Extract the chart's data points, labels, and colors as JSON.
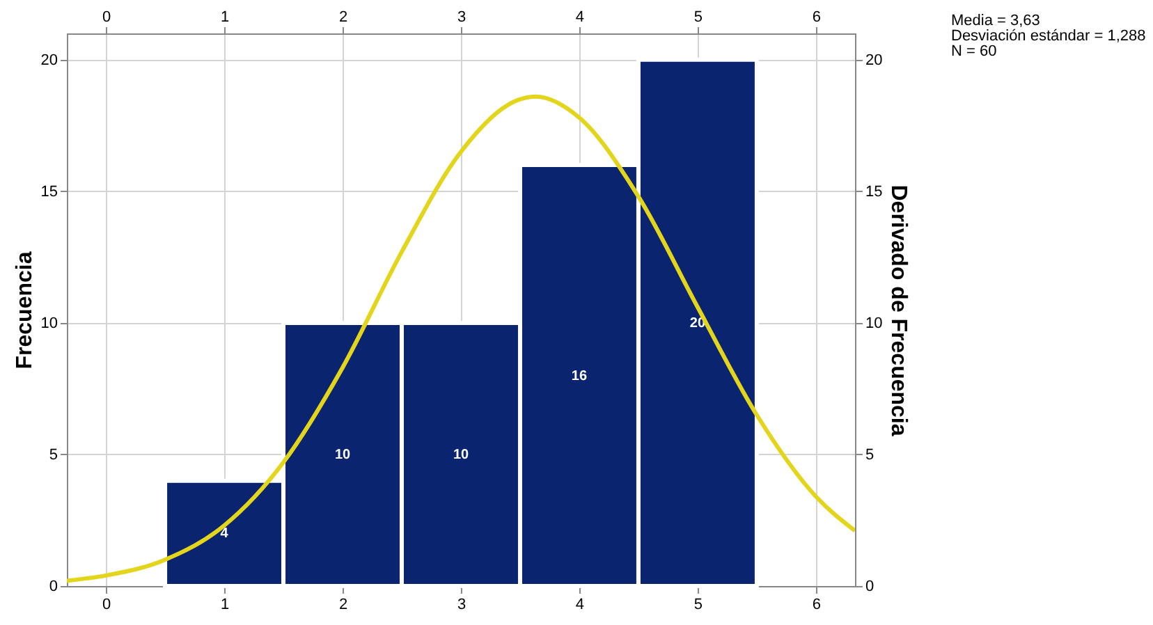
{
  "chart_data": {
    "type": "histogram",
    "ylabel": "Frecuencia",
    "y2label": "Derivado de Frecuencia",
    "bins": [
      0.5,
      1.5,
      2.5,
      3.5,
      4.5,
      5.5
    ],
    "values": [
      4,
      10,
      10,
      16,
      20
    ],
    "color": "#0a2470",
    "value_labels": [
      "4",
      "10",
      "10",
      "16",
      "20"
    ],
    "xlim": [
      -0.33,
      6.33
    ],
    "xticks": [
      0,
      1,
      2,
      3,
      4,
      5,
      6
    ],
    "x2lim": [
      -0.33,
      6.33
    ],
    "x2ticks": [
      0,
      1,
      2,
      3,
      4,
      5,
      6
    ],
    "ylim": [
      0,
      21
    ],
    "yticks": [
      0,
      5,
      10,
      15,
      20
    ],
    "y2lim": [
      0,
      21
    ],
    "y2ticks": [
      0,
      5,
      10,
      15,
      20
    ],
    "grid": true,
    "series": [
      {
        "type": "line",
        "axis": "y2",
        "color": "#e3d51c",
        "x": [
          -0.33,
          0,
          0.5,
          1,
          1.5,
          2,
          2.5,
          3,
          3.5,
          3.63,
          4,
          4.5,
          5,
          5.5,
          6,
          6.33
        ],
        "values": [
          0.2,
          0.4,
          1.0,
          2.3,
          4.7,
          8.3,
          12.7,
          16.5,
          18.5,
          18.6,
          17.8,
          14.8,
          10.6,
          6.5,
          3.4,
          2.1
        ]
      }
    ],
    "annotations": [
      "Media = 3,63",
      "Desviación estándar = 1,288",
      "N = 60"
    ]
  }
}
